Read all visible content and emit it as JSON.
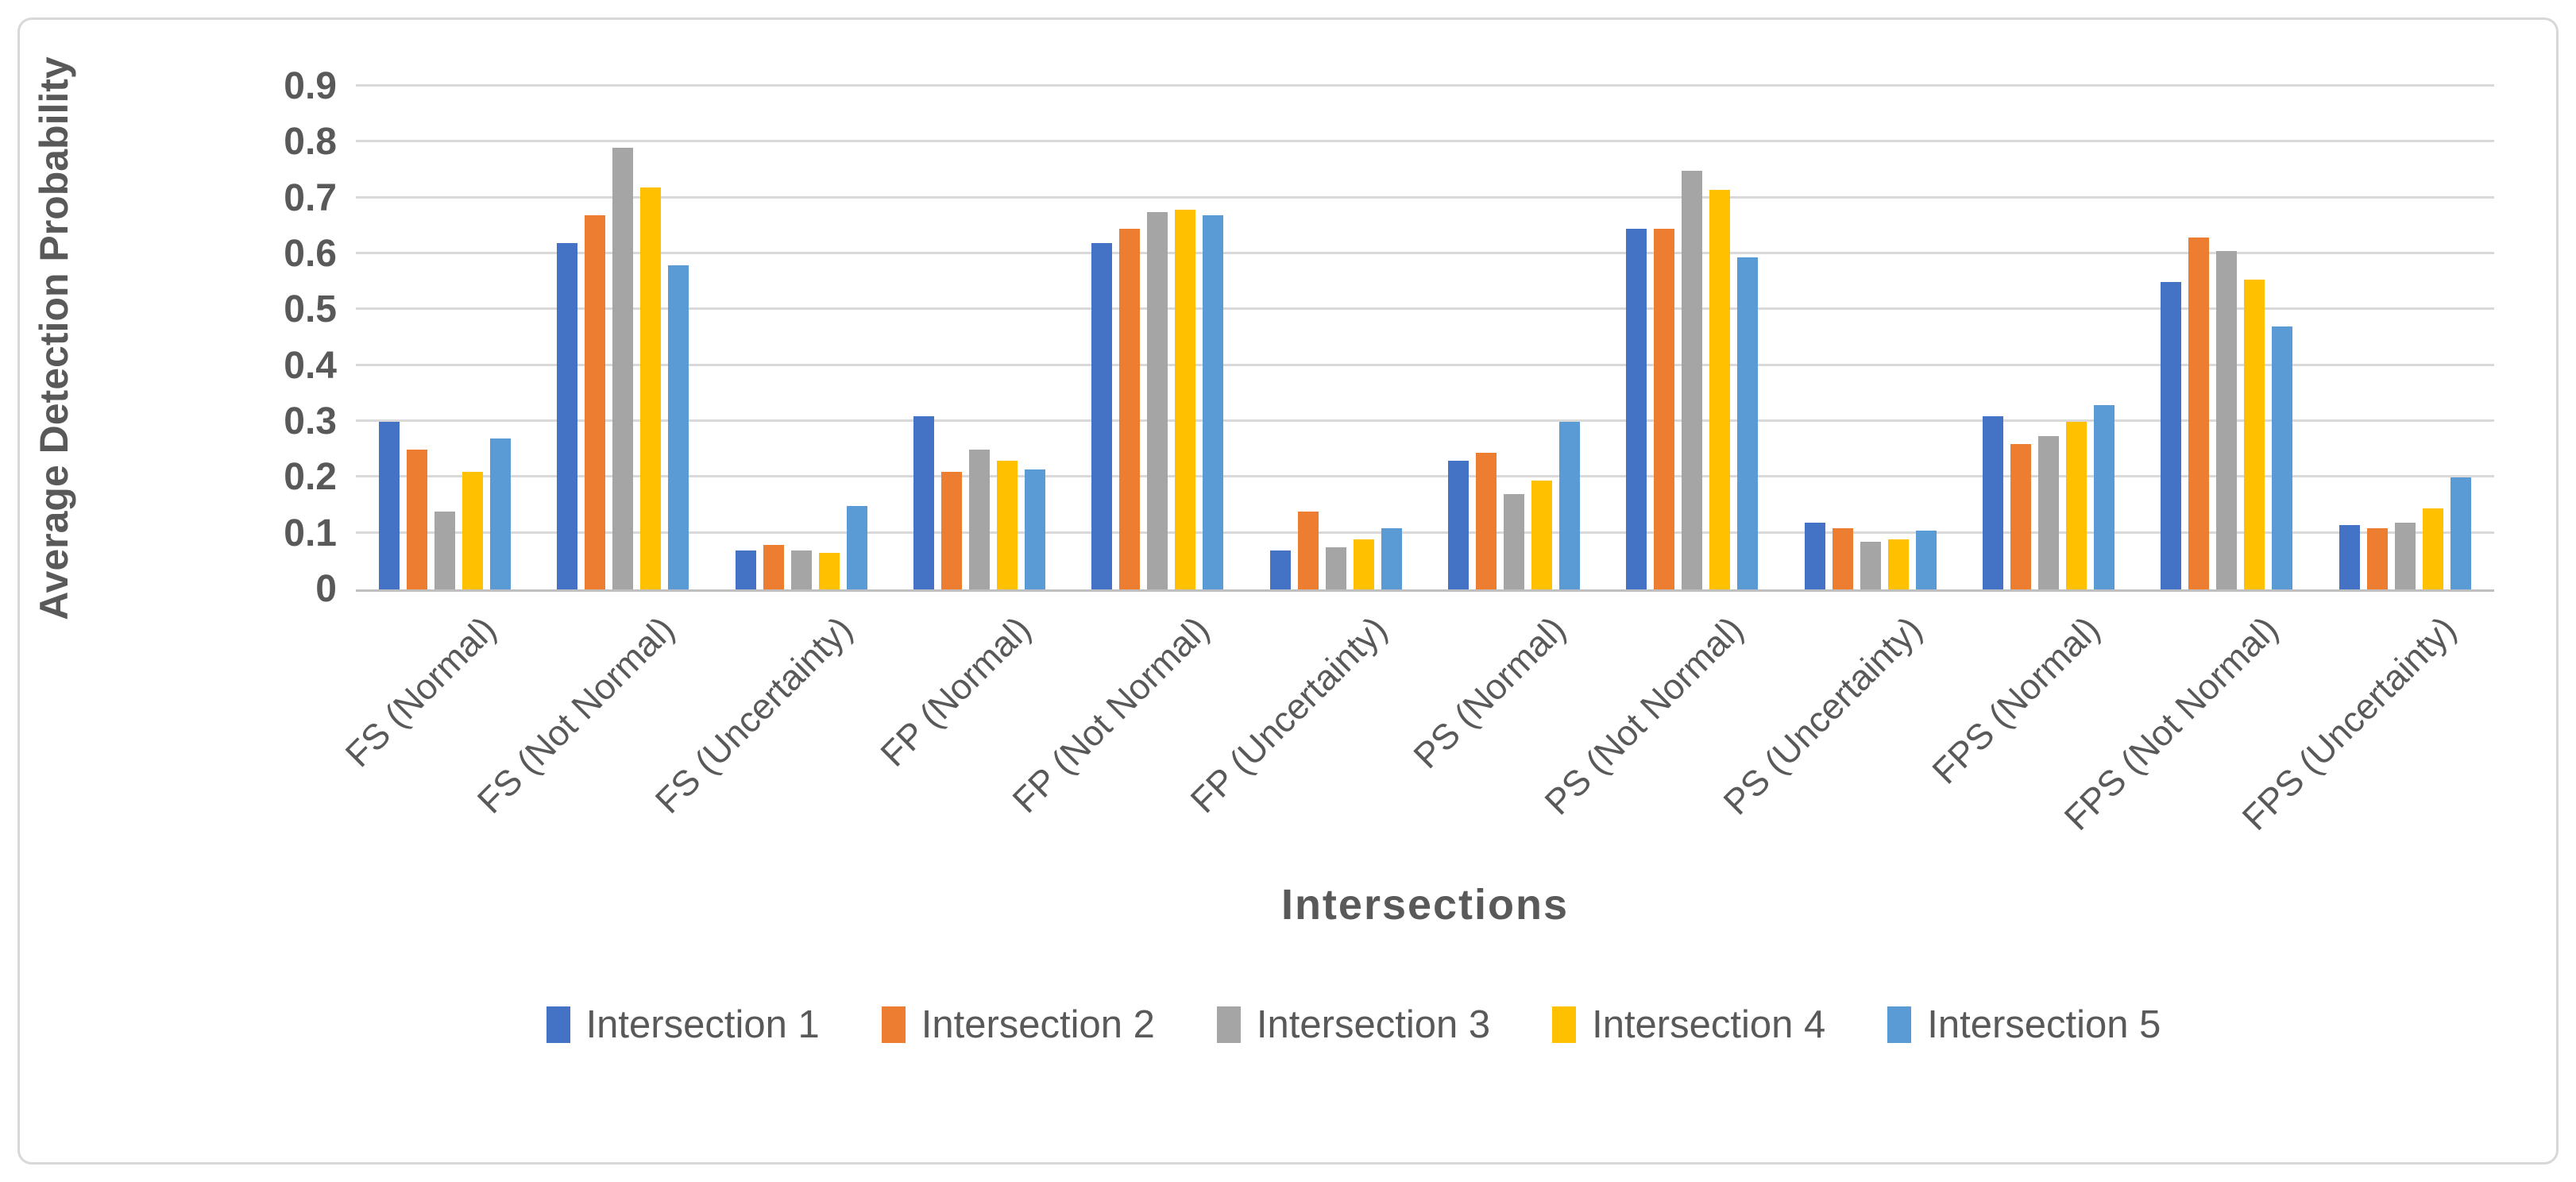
{
  "colors": {
    "background": "#FFFFFF",
    "frame_border": "#D8D8D8",
    "gridline": "#D9D9D9",
    "axis_line": "#BFBFBF",
    "text": "#595959"
  },
  "chart_data": {
    "type": "bar",
    "xlabel": "Intersections",
    "ylabel": "Average Detection Probability",
    "ylim": [
      0,
      0.9
    ],
    "ytick_step": 0.1,
    "yticks": [
      "0",
      "0.1",
      "0.2",
      "0.3",
      "0.4",
      "0.5",
      "0.6",
      "0.7",
      "0.8",
      "0.9"
    ],
    "grid": true,
    "legend_position": "bottom",
    "categories": [
      "FS (Normal)",
      "FS (Not Normal)",
      "FS (Uncertainty)",
      "FP (Normal)",
      "FP (Not Normal)",
      "FP (Uncertainty)",
      "PS (Normal)",
      "PS (Not Normal)",
      "PS (Uncertainty)",
      "FPS (Normal)",
      "FPS (Not Normal)",
      "FPS (Uncertainty)"
    ],
    "series": [
      {
        "name": "Intersection 1",
        "color": "#4472C4",
        "values": [
          0.3,
          0.62,
          0.07,
          0.31,
          0.62,
          0.07,
          0.23,
          0.645,
          0.12,
          0.31,
          0.55,
          0.115
        ]
      },
      {
        "name": "Intersection 2",
        "color": "#ED7D31",
        "values": [
          0.25,
          0.67,
          0.08,
          0.21,
          0.645,
          0.14,
          0.245,
          0.645,
          0.11,
          0.26,
          0.63,
          0.11
        ]
      },
      {
        "name": "Intersection 3",
        "color": "#A5A5A5",
        "values": [
          0.14,
          0.79,
          0.07,
          0.25,
          0.675,
          0.075,
          0.17,
          0.75,
          0.085,
          0.275,
          0.605,
          0.12
        ]
      },
      {
        "name": "Intersection 4",
        "color": "#FFC000",
        "values": [
          0.21,
          0.72,
          0.065,
          0.23,
          0.68,
          0.09,
          0.195,
          0.715,
          0.09,
          0.3,
          0.555,
          0.145
        ]
      },
      {
        "name": "Intersection 5",
        "color": "#5B9BD5",
        "values": [
          0.27,
          0.58,
          0.15,
          0.215,
          0.67,
          0.11,
          0.3,
          0.595,
          0.105,
          0.33,
          0.47,
          0.2
        ]
      }
    ]
  }
}
